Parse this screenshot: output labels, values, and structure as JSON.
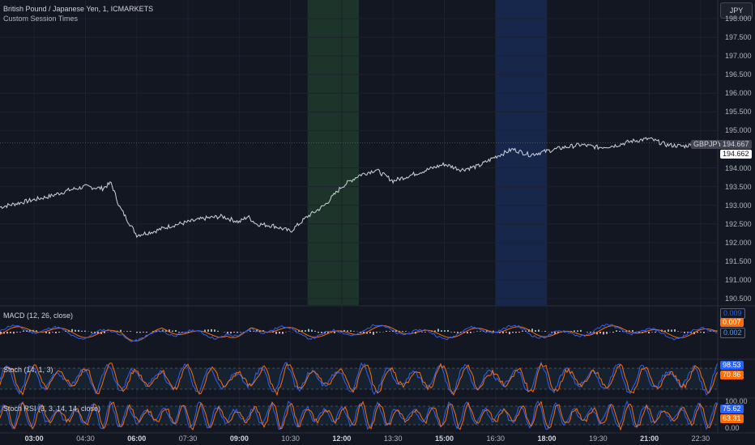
{
  "header": {
    "title": "British Pound / Japanese Yen, 1, ICMARKETS",
    "subtitle": "Custom Session Times",
    "currency_button": "JPY"
  },
  "colors": {
    "background": "#131722",
    "grid": "#1e222d",
    "price_line": "#d1d4dc",
    "session_green": "#1e3a2a",
    "session_blue": "#182a52",
    "macd_line": "#2962ff",
    "signal_line": "#ff6d00",
    "hist_pos": "#b2dfdb",
    "hist_neg": "#ffcdd2",
    "stoch_k": "#2962ff",
    "stoch_d": "#ff6d00",
    "band_fill": "#1b2a3a"
  },
  "price_axis": {
    "ticks": [
      "198.000",
      "197.500",
      "197.000",
      "196.500",
      "196.000",
      "195.500",
      "195.000",
      "194.000",
      "193.500",
      "193.000",
      "192.500",
      "192.000",
      "191.500",
      "191.000",
      "190.500"
    ],
    "symbol_badge": "GBPJPY",
    "last_price": "194.667",
    "bid_price": "194.662"
  },
  "time_axis": {
    "labels": [
      {
        "text": "03:00",
        "bold": true
      },
      {
        "text": "04:30",
        "bold": false
      },
      {
        "text": "06:00",
        "bold": true
      },
      {
        "text": "07:30",
        "bold": false
      },
      {
        "text": "09:00",
        "bold": true
      },
      {
        "text": "10:30",
        "bold": false
      },
      {
        "text": "12:00",
        "bold": true
      },
      {
        "text": "13:30",
        "bold": false
      },
      {
        "text": "15:00",
        "bold": true
      },
      {
        "text": "16:30",
        "bold": false
      },
      {
        "text": "18:00",
        "bold": true
      },
      {
        "text": "19:30",
        "bold": false
      },
      {
        "text": "21:00",
        "bold": true
      },
      {
        "text": "22:30",
        "bold": false
      }
    ]
  },
  "indicators": {
    "macd": {
      "label": "MACD (12, 26, close)",
      "values": [
        "0.009",
        "0.007",
        "0.002"
      ]
    },
    "stoch": {
      "label": "Stoch (14, 1, 3)",
      "values": [
        "98.53",
        "70.86"
      ]
    },
    "stoch_rsi": {
      "label": "Stoch RSI (3, 3, 14, 14, close)",
      "axis_top": "100.00",
      "values": [
        "75.62",
        "63.31"
      ],
      "axis_bottom": "0.00"
    }
  },
  "chart_data": {
    "type": "line",
    "series": [
      {
        "x": [
          "02:00",
          "02:30",
          "03:00",
          "03:30",
          "04:00",
          "04:30",
          "05:00",
          "05:15",
          "05:30",
          "06:00",
          "06:30",
          "07:00",
          "07:30",
          "08:00",
          "08:30",
          "09:00",
          "09:15",
          "09:30",
          "10:00",
          "10:30",
          "11:00",
          "11:30",
          "12:00",
          "12:30",
          "13:00",
          "13:30",
          "14:00",
          "14:30",
          "15:00",
          "15:30",
          "16:00",
          "16:30",
          "17:00",
          "17:30",
          "18:00",
          "18:30",
          "19:00",
          "19:30",
          "20:00",
          "20:30",
          "21:00",
          "21:30",
          "22:00",
          "22:30"
        ],
        "values": [
          192.95,
          193.05,
          193.15,
          193.25,
          193.4,
          193.5,
          193.45,
          193.6,
          192.95,
          192.2,
          192.3,
          192.45,
          192.55,
          192.65,
          192.7,
          192.55,
          192.7,
          192.5,
          192.45,
          192.3,
          192.7,
          193.0,
          193.5,
          193.8,
          193.95,
          193.65,
          193.8,
          193.95,
          194.1,
          193.95,
          194.05,
          194.3,
          194.5,
          194.35,
          194.45,
          194.55,
          194.62,
          194.55,
          194.6,
          194.72,
          194.78,
          194.62,
          194.58,
          194.667
        ]
      }
    ],
    "ylim": [
      190.5,
      198.0
    ],
    "xlim": [
      "02:00",
      "23:00"
    ],
    "grid": true,
    "sessions": [
      {
        "start": "11:00",
        "end": "12:30",
        "color": "green"
      },
      {
        "start": "16:30",
        "end": "18:00",
        "color": "blue"
      }
    ]
  }
}
